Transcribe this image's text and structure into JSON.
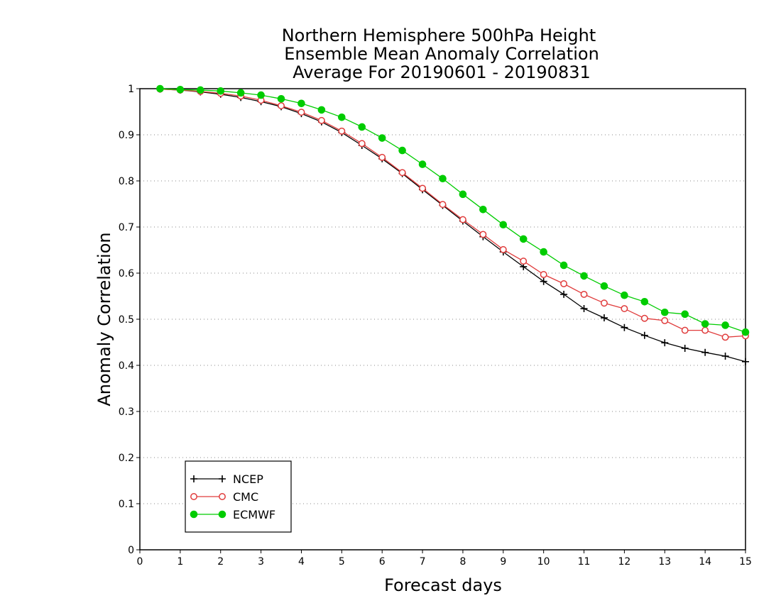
{
  "chart_data": {
    "type": "line",
    "title_lines": [
      "Northern Hemisphere 500hPa Height",
      "Ensemble Mean Anomaly Correlation",
      "Average For 20190601 - 20190831"
    ],
    "xlabel": "Forecast days",
    "ylabel": "Anomaly Correlation",
    "xlim": [
      0,
      15
    ],
    "ylim": [
      0,
      1
    ],
    "x_ticks": [
      "0",
      "1",
      "2",
      "3",
      "4",
      "5",
      "6",
      "7",
      "8",
      "9",
      "10",
      "11",
      "12",
      "13",
      "14",
      "15"
    ],
    "y_ticks": [
      "0",
      "0.1",
      "0.2",
      "0.3",
      "0.4",
      "0.5",
      "0.6",
      "0.7",
      "0.8",
      "0.9",
      "1"
    ],
    "grid": "dotted horizontal",
    "legend_position": "bottom-left",
    "x": [
      0.5,
      1,
      1.5,
      2,
      2.5,
      3,
      3.5,
      4,
      4.5,
      5,
      5.5,
      6,
      6.5,
      7,
      7.5,
      8,
      8.5,
      9,
      9.5,
      10,
      10.5,
      11,
      11.5,
      12,
      12.5,
      13,
      13.5,
      14,
      14.5,
      15
    ],
    "series": [
      {
        "name": "NCEP",
        "color": "#000000",
        "marker": "plus",
        "values": [
          0.999,
          0.997,
          0.993,
          0.988,
          0.981,
          0.972,
          0.961,
          0.946,
          0.928,
          0.905,
          0.877,
          0.848,
          0.816,
          0.781,
          0.747,
          0.713,
          0.679,
          0.646,
          0.614,
          0.582,
          0.554,
          0.523,
          0.503,
          0.482,
          0.465,
          0.449,
          0.437,
          0.428,
          0.42,
          0.408
        ]
      },
      {
        "name": "CMC",
        "color": "#e03c3c",
        "marker": "open-circle",
        "values": [
          0.999,
          0.997,
          0.994,
          0.99,
          0.984,
          0.975,
          0.963,
          0.949,
          0.931,
          0.908,
          0.881,
          0.851,
          0.818,
          0.784,
          0.749,
          0.716,
          0.684,
          0.651,
          0.626,
          0.597,
          0.577,
          0.554,
          0.535,
          0.523,
          0.502,
          0.497,
          0.476,
          0.476,
          0.461,
          0.464
        ]
      },
      {
        "name": "ECMWF",
        "color": "#00cc00",
        "marker": "filled-circle",
        "values": [
          1.0,
          0.998,
          0.997,
          0.995,
          0.991,
          0.986,
          0.978,
          0.968,
          0.954,
          0.938,
          0.917,
          0.893,
          0.866,
          0.836,
          0.805,
          0.771,
          0.738,
          0.705,
          0.674,
          0.646,
          0.617,
          0.594,
          0.572,
          0.552,
          0.538,
          0.515,
          0.511,
          0.49,
          0.487,
          0.472
        ]
      }
    ]
  }
}
